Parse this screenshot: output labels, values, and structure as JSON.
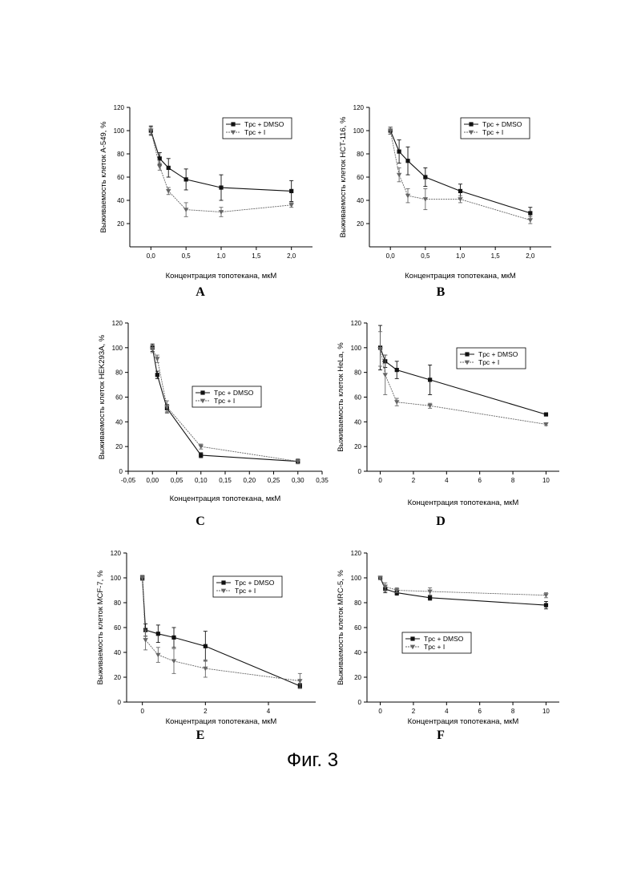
{
  "figure": {
    "caption": "Фиг. 3"
  },
  "legend_labels": {
    "dmso": "Tpc + DMSO",
    "inhibitor": "Tpc + I"
  },
  "colors": {
    "axis": "#000000",
    "dmso": "#111111",
    "inhibitor": "#666666"
  },
  "chart_data": [
    {
      "id": "A",
      "type": "line",
      "letter": "A",
      "xlabel": "Концентрация топотекана, мкМ",
      "ylabel": "Выживаемость клеток A-549, %",
      "xlim": [
        -0.3,
        2.3
      ],
      "ylim": [
        0,
        120
      ],
      "xticks": [
        0.0,
        0.5,
        1.0,
        1.5,
        2.0
      ],
      "xtick_labels": [
        "0,0",
        "0,5",
        "1,0",
        "1,5",
        "2,0"
      ],
      "yticks": [
        20,
        40,
        60,
        80,
        100,
        120
      ],
      "ytick_labels": [
        "20",
        "40",
        "60",
        "80",
        "100",
        "120"
      ],
      "legend_position": "top-right",
      "series": [
        {
          "name": "Tpc + DMSO",
          "marker": "square",
          "x": [
            0,
            0.125,
            0.25,
            0.5,
            1.0,
            2.0
          ],
          "y": [
            100,
            76,
            68,
            58,
            51,
            48
          ],
          "err": [
            4,
            5,
            8,
            9,
            11,
            9
          ]
        },
        {
          "name": "Tpc + I",
          "marker": "triangle",
          "x": [
            0,
            0.125,
            0.25,
            0.5,
            1.0,
            2.0
          ],
          "y": [
            100,
            69,
            48,
            32,
            30,
            36
          ],
          "err": [
            3,
            3,
            3,
            6,
            4,
            2
          ]
        }
      ]
    },
    {
      "id": "B",
      "type": "line",
      "letter": "B",
      "xlabel": "Концентрация топотекана, мкМ",
      "ylabel": "Выживаемость клеток  HCT-116, %",
      "xlim": [
        -0.3,
        2.3
      ],
      "ylim": [
        0,
        120
      ],
      "xticks": [
        0.0,
        0.5,
        1.0,
        1.5,
        2.0
      ],
      "xtick_labels": [
        "0,0",
        "0,5",
        "1,0",
        "1,5",
        "2,0"
      ],
      "yticks": [
        20,
        40,
        60,
        80,
        100,
        120
      ],
      "ytick_labels": [
        "20",
        "40",
        "60",
        "80",
        "100",
        "120"
      ],
      "legend_position": "top-right",
      "series": [
        {
          "name": "Tpc + DMSO",
          "marker": "square",
          "x": [
            0,
            0.125,
            0.25,
            0.5,
            1.0,
            2.0
          ],
          "y": [
            100,
            82,
            74,
            60,
            48,
            29
          ],
          "err": [
            3,
            10,
            12,
            8,
            6,
            5
          ]
        },
        {
          "name": "Tpc + I",
          "marker": "triangle",
          "x": [
            0,
            0.125,
            0.25,
            0.5,
            1.0,
            2.0
          ],
          "y": [
            100,
            62,
            44,
            41,
            41,
            23
          ],
          "err": [
            3,
            6,
            6,
            9,
            3,
            3
          ]
        }
      ]
    },
    {
      "id": "C",
      "type": "line",
      "letter": "C",
      "xlabel": "Концентрация топотекана, мкМ",
      "ylabel": "Выживаемость клеток HEK293A, %",
      "xlim": [
        -0.05,
        0.35
      ],
      "ylim": [
        0,
        120
      ],
      "xticks": [
        -0.05,
        0.0,
        0.05,
        0.1,
        0.15,
        0.2,
        0.25,
        0.3,
        0.35
      ],
      "xtick_labels": [
        "-0,05",
        "0,00",
        "0,05",
        "0,10",
        "0,15",
        "0,20",
        "0,25",
        "0,30",
        "0,35"
      ],
      "yticks": [
        0,
        20,
        40,
        60,
        80,
        100,
        120
      ],
      "ytick_labels": [
        "0",
        "20",
        "40",
        "60",
        "80",
        "100",
        "120"
      ],
      "legend_position": "center-right",
      "series": [
        {
          "name": "Tpc + DMSO",
          "marker": "square",
          "x": [
            0,
            0.01,
            0.03,
            0.1,
            0.3
          ],
          "y": [
            100,
            78,
            51,
            13,
            8
          ],
          "err": [
            3,
            3,
            3,
            2,
            1
          ]
        },
        {
          "name": "Tpc + I",
          "marker": "triangle",
          "x": [
            0,
            0.01,
            0.03,
            0.1,
            0.3
          ],
          "y": [
            99,
            91,
            52,
            20,
            8
          ],
          "err": [
            3,
            3,
            5,
            2,
            2
          ]
        }
      ]
    },
    {
      "id": "D",
      "type": "line",
      "letter": "D",
      "xlabel": "Концентрация топотекана, мкМ",
      "ylabel": "Выживаемость клеток HeLa, %",
      "xlim": [
        -0.8,
        10.8
      ],
      "ylim": [
        0,
        120
      ],
      "xticks": [
        0,
        2,
        4,
        6,
        8,
        10
      ],
      "xtick_labels": [
        "0",
        "2",
        "4",
        "6",
        "8",
        "10"
      ],
      "yticks": [
        0,
        20,
        40,
        60,
        80,
        100,
        120
      ],
      "ytick_labels": [
        "0",
        "20",
        "40",
        "60",
        "80",
        "100",
        "120"
      ],
      "legend_position": "top-right",
      "series": [
        {
          "name": "Tpc + DMSO",
          "marker": "square",
          "x": [
            0,
            0.3,
            1,
            3,
            10
          ],
          "y": [
            100,
            89,
            82,
            74,
            46
          ],
          "err": [
            18,
            5,
            7,
            12,
            1
          ]
        },
        {
          "name": "Tpc + I",
          "marker": "triangle",
          "x": [
            0,
            0.3,
            1,
            3,
            10
          ],
          "y": [
            99,
            78,
            56,
            53,
            38
          ],
          "err": [
            14,
            16,
            3,
            2,
            1
          ]
        }
      ]
    },
    {
      "id": "E",
      "type": "line",
      "letter": "E",
      "xlabel": "Концентрация топотекана, мкМ",
      "ylabel": "Выживаемость клеток MCF-7, %",
      "xlim": [
        -0.5,
        5.5
      ],
      "ylim": [
        0,
        120
      ],
      "xticks": [
        0,
        2,
        4
      ],
      "xtick_labels": [
        "0",
        "2",
        "4"
      ],
      "yticks": [
        0,
        20,
        40,
        60,
        80,
        100,
        120
      ],
      "ytick_labels": [
        "0",
        "20",
        "40",
        "60",
        "80",
        "100",
        "120"
      ],
      "legend_position": "top-right",
      "series": [
        {
          "name": "Tpc + DMSO",
          "marker": "square",
          "x": [
            0,
            0.1,
            0.5,
            1,
            2,
            5
          ],
          "y": [
            100,
            58,
            55,
            52,
            45,
            13
          ],
          "err": [
            2,
            5,
            7,
            8,
            12,
            2
          ]
        },
        {
          "name": "Tpc + I",
          "marker": "triangle",
          "x": [
            0,
            0.1,
            0.5,
            1,
            2,
            5
          ],
          "y": [
            100,
            50,
            38,
            33,
            27,
            17
          ],
          "err": [
            2,
            8,
            6,
            10,
            7,
            6
          ]
        }
      ]
    },
    {
      "id": "F",
      "type": "line",
      "letter": "F",
      "xlabel": "Концентрация топотекана, мкМ",
      "ylabel": "Выживаемость клеток MRC-5, %",
      "xlim": [
        -0.8,
        10.8
      ],
      "ylim": [
        0,
        120
      ],
      "xticks": [
        0,
        2,
        4,
        6,
        8,
        10
      ],
      "xtick_labels": [
        "0",
        "2",
        "4",
        "6",
        "8",
        "10"
      ],
      "yticks": [
        0,
        20,
        40,
        60,
        80,
        100,
        120
      ],
      "ytick_labels": [
        "0",
        "20",
        "40",
        "60",
        "80",
        "100",
        "120"
      ],
      "legend_position": "center",
      "series": [
        {
          "name": "Tpc + DMSO",
          "marker": "square",
          "x": [
            0,
            0.3,
            1,
            3,
            10
          ],
          "y": [
            100,
            91,
            88,
            84,
            78
          ],
          "err": [
            1,
            3,
            2,
            2,
            3
          ]
        },
        {
          "name": "Tpc + I",
          "marker": "triangle",
          "x": [
            0,
            0.3,
            1,
            3,
            10
          ],
          "y": [
            100,
            93,
            90,
            89,
            86
          ],
          "err": [
            1,
            3,
            2,
            3,
            2
          ]
        }
      ]
    }
  ]
}
